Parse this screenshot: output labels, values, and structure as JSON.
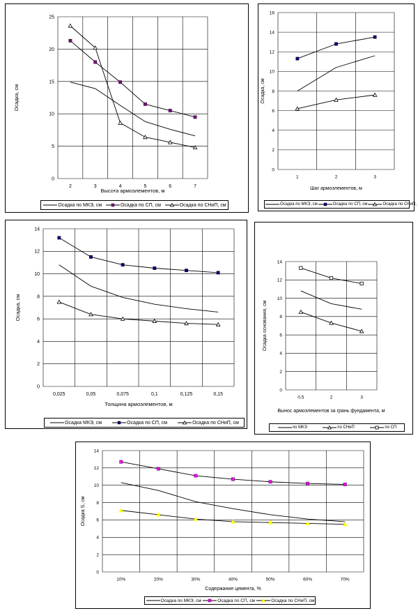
{
  "chart_data": [
    {
      "id": "c1",
      "type": "line",
      "x": [
        2,
        3,
        4,
        5,
        6,
        7
      ],
      "xticks": [
        "2",
        "3",
        "4",
        "5",
        "6",
        "7"
      ],
      "ylim": [
        0,
        25
      ],
      "yticks": [
        "0",
        "5",
        "10",
        "15",
        "20",
        "25"
      ],
      "xlabel": "Высота армоэлементов, м",
      "ylabel": "Осадка, см",
      "grid": true,
      "legend": "bottom",
      "series": [
        {
          "name": "Осадка по МКЭ, см",
          "marker": "none",
          "color": "#000000",
          "values": [
            14.9,
            13.9,
            11.3,
            8.8,
            7.6,
            6.6
          ]
        },
        {
          "name": "Осадка по СП, см",
          "marker": "square",
          "color": "#800080",
          "values": [
            21.3,
            18.0,
            14.9,
            11.5,
            10.5,
            9.5
          ]
        },
        {
          "name": "Осадка по СНиП, см",
          "marker": "triangle",
          "color": "#000000",
          "values": [
            23.6,
            20.2,
            8.6,
            6.4,
            5.6,
            4.8
          ]
        }
      ]
    },
    {
      "id": "c2",
      "type": "line",
      "x": [
        1,
        2,
        3
      ],
      "xticks": [
        "1",
        "2",
        "3"
      ],
      "ylim": [
        0,
        16
      ],
      "yticks": [
        "0",
        "2",
        "4",
        "6",
        "8",
        "10",
        "12",
        "14",
        "16"
      ],
      "xlabel": "Шаг армоэлементов, м",
      "ylabel": "Осадка, см",
      "grid": true,
      "legend": "bottom",
      "series": [
        {
          "name": "Осадка по МКЭ, см",
          "marker": "none",
          "color": "#000000",
          "values": [
            8.0,
            10.4,
            11.6
          ]
        },
        {
          "name": "Осадка по СП, см",
          "marker": "square",
          "color": "#000080",
          "values": [
            11.3,
            12.8,
            13.5
          ]
        },
        {
          "name": "Осадка по СНиП, см",
          "marker": "triangle",
          "color": "#000000",
          "values": [
            6.2,
            7.1,
            7.6
          ]
        }
      ]
    },
    {
      "id": "c3",
      "type": "line",
      "x": [
        0.025,
        0.05,
        0.075,
        0.1,
        0.125,
        0.15
      ],
      "xticks": [
        "0,025",
        "0,05",
        "0,075",
        "0,1",
        "0,125",
        "0,15"
      ],
      "ylim": [
        0,
        14
      ],
      "yticks": [
        "0",
        "2",
        "4",
        "6",
        "8",
        "10",
        "12",
        "14"
      ],
      "xlabel": "Толщина армоэлементов, м",
      "ylabel": "Осадка, см",
      "grid": true,
      "legend": "bottom",
      "series": [
        {
          "name": "Осадка МКЭ, см",
          "marker": "none",
          "color": "#000000",
          "values": [
            10.8,
            8.9,
            7.9,
            7.3,
            6.9,
            6.6
          ]
        },
        {
          "name": "Осадка по СП, см",
          "marker": "square",
          "color": "#000080",
          "values": [
            13.2,
            11.5,
            10.8,
            10.5,
            10.3,
            10.1
          ]
        },
        {
          "name": "Осадка по СНиП, см",
          "marker": "triangle",
          "color": "#000000",
          "values": [
            7.5,
            6.4,
            6.0,
            5.8,
            5.6,
            5.5
          ]
        }
      ]
    },
    {
      "id": "c4",
      "type": "line",
      "x": [
        0.5,
        2,
        3
      ],
      "xticks": [
        "0,5",
        "2",
        "3"
      ],
      "ylim": [
        0,
        14
      ],
      "yticks": [
        "0",
        "2",
        "4",
        "6",
        "8",
        "10",
        "12",
        "14"
      ],
      "xlabel": "Вынос армоэлементов за грань фундамента, м",
      "ylabel": "Осадка основания, см",
      "grid": true,
      "legend": "bottom",
      "series": [
        {
          "name": "по МКЭ",
          "marker": "none",
          "color": "#000000",
          "values": [
            10.8,
            9.4,
            8.8
          ]
        },
        {
          "name": "по СНиП",
          "marker": "triangle",
          "color": "#000000",
          "values": [
            8.5,
            7.3,
            6.4
          ]
        },
        {
          "name": "по СП",
          "marker": "square-open",
          "color": "#000000",
          "values": [
            13.3,
            12.2,
            11.6
          ]
        }
      ]
    },
    {
      "id": "c5",
      "type": "line",
      "x": [
        10,
        20,
        30,
        40,
        50,
        60,
        70
      ],
      "xticks": [
        "10%",
        "20%",
        "30%",
        "40%",
        "50%",
        "60%",
        "70%"
      ],
      "ylim": [
        0,
        14
      ],
      "yticks": [
        "0",
        "2",
        "4",
        "6",
        "8",
        "10",
        "12",
        "14"
      ],
      "xlabel": "Содержание цемента, %",
      "ylabel": "Осадка S, см",
      "grid": true,
      "legend": "bottom",
      "series": [
        {
          "name": "Осадка по МКЭ, см",
          "marker": "none",
          "color": "#000000",
          "values": [
            10.3,
            9.4,
            8.1,
            7.3,
            6.6,
            6.1,
            5.8
          ]
        },
        {
          "name": "Осадка по СП, см",
          "marker": "square",
          "color": "#ff00ff",
          "values": [
            12.7,
            11.9,
            11.1,
            10.7,
            10.4,
            10.2,
            10.1
          ]
        },
        {
          "name": "Осадка по СНиП, см",
          "marker": "triangle",
          "color": "#ffff00",
          "values": [
            7.1,
            6.6,
            6.1,
            5.8,
            5.7,
            5.6,
            5.5
          ]
        }
      ]
    }
  ]
}
